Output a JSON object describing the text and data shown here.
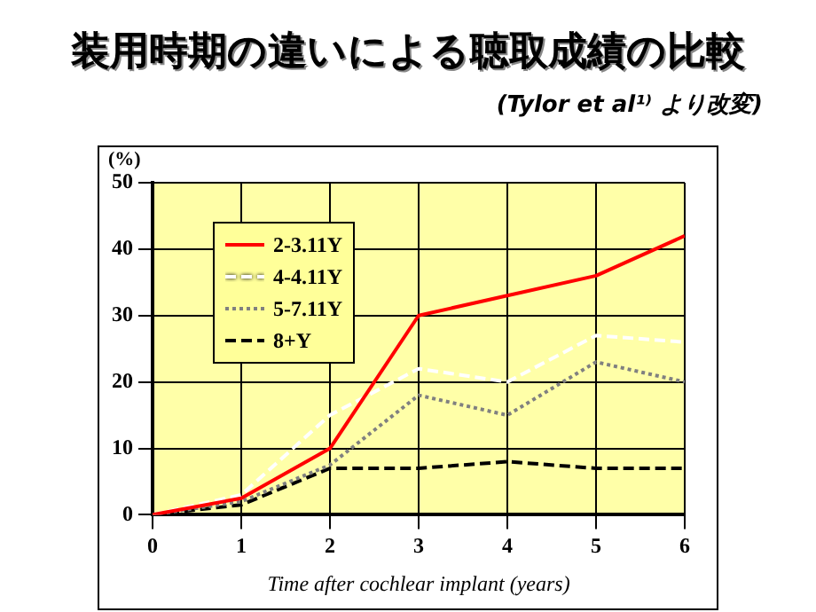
{
  "chart_data": {
    "type": "line",
    "title": "装用時期の違いによる聴取成績の比較",
    "subtitle": "(Tylor et al¹⁾ より改変)",
    "xlabel": "Time after cochlear implant (years)",
    "ylabel": "(%)",
    "x": [
      0,
      1,
      2,
      3,
      4,
      5,
      6
    ],
    "xlim": [
      0,
      6
    ],
    "xticks": [
      0,
      1,
      2,
      3,
      4,
      5,
      6
    ],
    "ylim": [
      0,
      50
    ],
    "yticks": [
      0,
      10,
      20,
      30,
      40,
      50
    ],
    "series": [
      {
        "name": "2-3.11Y",
        "color": "#ff0000",
        "line_style": "solid",
        "values": [
          0,
          2.5,
          10,
          30,
          33,
          36,
          42
        ]
      },
      {
        "name": "4-4.11Y",
        "color": "#ffffff",
        "line_style": "dashed",
        "values": [
          0,
          3,
          15,
          22,
          20,
          27,
          26
        ]
      },
      {
        "name": "5-7.11Y",
        "color": "#808080",
        "line_style": "dotted",
        "values": [
          0,
          2,
          7.5,
          18,
          15,
          23,
          20
        ]
      },
      {
        "name": "8+Y",
        "color": "#000000",
        "line_style": "dashed",
        "values": [
          0,
          1.5,
          7,
          7,
          8,
          7,
          7
        ]
      }
    ],
    "grid": true,
    "legend": "top left",
    "marker": "none"
  }
}
